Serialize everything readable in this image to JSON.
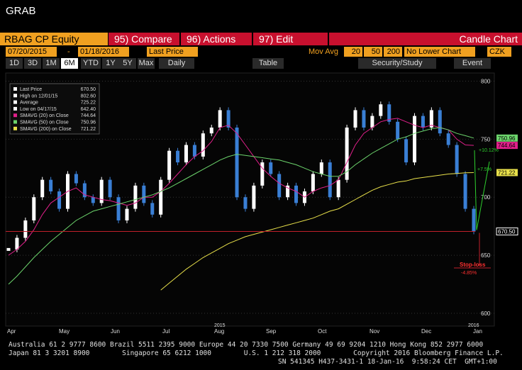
{
  "header": {
    "title": "GRAB"
  },
  "toolbar": {
    "security": "RBAG CP Equity",
    "buttons": [
      "95) Compare",
      "96) Actions",
      "97) Edit"
    ],
    "chart_type": "Candle Chart"
  },
  "settings": {
    "start_date": "07/20/2015",
    "end_date": "01/18/2016",
    "field": "Last Price",
    "mov_avg_label": "Mov Avg",
    "mov_avg": [
      "20",
      "50",
      "200"
    ],
    "lower_chart": "No Lower Chart",
    "currency": "CZK"
  },
  "periods": [
    "1D",
    "3D",
    "1M",
    "6M",
    "YTD",
    "1Y",
    "5Y",
    "Max"
  ],
  "frequency": "Daily",
  "table_button": "Table",
  "security_study": "Security/Study",
  "event": "Event",
  "chart": {
    "type": "candlestick",
    "legend": [
      {
        "name": "Last Price",
        "value": "670.50",
        "color": "#ffffff"
      },
      {
        "name": "High on 12/01/15",
        "value": "802.60",
        "color": "#ffffff"
      },
      {
        "name": "Average",
        "value": "725.22",
        "color": "#ffffff"
      },
      {
        "name": "Low on 04/17/15",
        "value": "642.40",
        "color": "#ffffff"
      },
      {
        "name": "SMAVG (20) on Close",
        "value": "744.64",
        "color": "#e0208a"
      },
      {
        "name": "SMAVG (50) on Close",
        "value": "750.96",
        "color": "#6cd46c"
      },
      {
        "name": "SMAVG (200) on Close",
        "value": "721.22",
        "color": "#e8e04a"
      }
    ],
    "months": [
      "Apr",
      "May",
      "Jun",
      "Jul",
      "Aug",
      "Sep",
      "Oct",
      "Nov",
      "Dec",
      "Jan"
    ],
    "years": [
      "2015",
      "2016"
    ],
    "ylim": [
      589,
      807
    ],
    "yticks": [
      600,
      650,
      700,
      750,
      800
    ],
    "closes": [
      655,
      665,
      680,
      700,
      715,
      705,
      690,
      720,
      712,
      700,
      695,
      715,
      700,
      680,
      690,
      710,
      695,
      685,
      715,
      740,
      730,
      745,
      735,
      755,
      760,
      775,
      760,
      700,
      690,
      710,
      730,
      720,
      700,
      710,
      695,
      705,
      720,
      730,
      700,
      715,
      760,
      775,
      760,
      770,
      780,
      765,
      750,
      730,
      770,
      760,
      775,
      755,
      745,
      720,
      690,
      670.5
    ],
    "up_color": "#ffffff",
    "down_color": "#3a7fd5",
    "series": [
      {
        "name": "SMAVG (20)",
        "color": "#e0208a",
        "values": [
          650,
          655,
          662,
          672,
          685,
          695,
          700,
          705,
          708,
          702,
          700,
          698,
          697,
          695,
          693,
          695,
          700,
          700,
          705,
          712,
          720,
          728,
          735,
          740,
          748,
          760,
          762,
          755,
          745,
          735,
          725,
          718,
          712,
          708,
          705,
          700,
          705,
          708,
          710,
          715,
          730,
          745,
          755,
          760,
          765,
          767,
          768,
          765,
          762,
          760,
          762,
          760,
          758,
          750,
          745,
          744.64
        ]
      },
      {
        "name": "SMAVG (50)",
        "color": "#6cd46c",
        "values": [
          625,
          632,
          640,
          648,
          655,
          662,
          668,
          674,
          680,
          684,
          688,
          690,
          692,
          694,
          696,
          698,
          700,
          702,
          705,
          708,
          712,
          716,
          720,
          724,
          728,
          732,
          735,
          737,
          736,
          735,
          734,
          733,
          732,
          730,
          728,
          725,
          722,
          720,
          718,
          718,
          722,
          728,
          733,
          738,
          742,
          746,
          750,
          752,
          755,
          757,
          759,
          760,
          758,
          755,
          753,
          750.96
        ]
      },
      {
        "name": "SMAVG (200)",
        "color": "#e8e04a",
        "values": [
          null,
          null,
          null,
          null,
          null,
          null,
          null,
          null,
          null,
          null,
          null,
          null,
          null,
          null,
          null,
          null,
          null,
          null,
          620,
          626,
          632,
          638,
          643,
          648,
          652,
          656,
          660,
          663,
          666,
          668,
          670,
          672,
          674,
          676,
          678,
          680,
          682,
          685,
          688,
          690,
          694,
          698,
          702,
          706,
          709,
          711,
          713,
          714,
          716,
          717,
          718,
          719,
          720,
          720.5,
          721,
          721.22
        ]
      }
    ],
    "last_labels": [
      {
        "value": 750.96,
        "label": "750.96",
        "color": "#6cd46c"
      },
      {
        "value": 744.64,
        "label": "744.64",
        "color": "#e0208a"
      },
      {
        "value": 721.22,
        "label": "721.22",
        "color": "#e8e04a"
      },
      {
        "value": 670.5,
        "label": "670.50",
        "color": "#ffffff"
      }
    ],
    "stop_level": 670.5,
    "annotations": {
      "stop_loss": "Stop-loss",
      "stop_pct": "-4.85%",
      "target1": "+7.5%",
      "target2": "+10.12%"
    }
  },
  "footer": {
    "lines": [
      "Australia 61 2 9777 8600 Brazil 5511 2395 9000 Europe 44 20 7330 7500 Germany 49 69 9204 1210 Hong Kong 852 2977 6000",
      "Japan 81 3 3201 8900        Singapore 65 6212 1000        U.S. 1 212 318 2000        Copyright 2016 Bloomberg Finance L.P.",
      "SN 541345 H437-3431-1 18-Jan-16  9:58:24 CET  GMT+1:00"
    ]
  }
}
